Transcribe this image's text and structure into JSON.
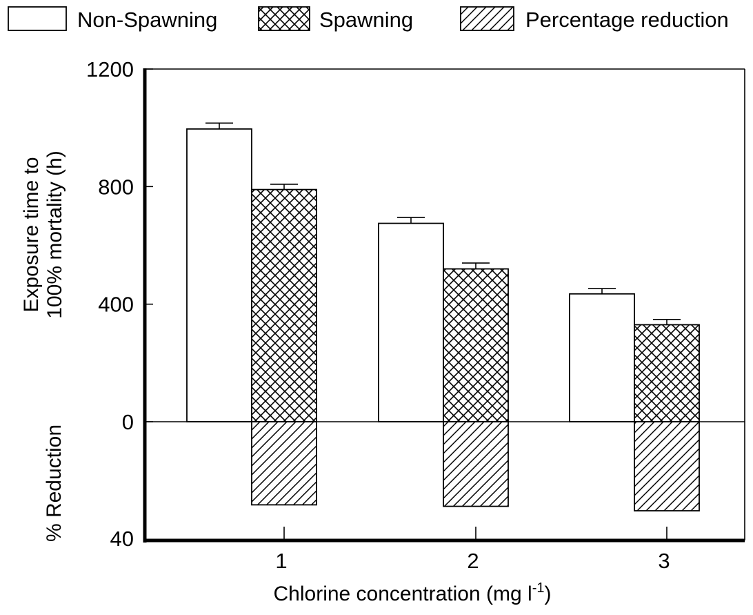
{
  "chart_data": {
    "type": "bar",
    "xlabel": "Chlorine concentration (mg l",
    "xlabel_superscript": "-1",
    "xlabel_close": ")",
    "ylabel_top_line1": "Exposure time to",
    "ylabel_top_line2": "100% mortality (h)",
    "ylabel_bottom": "% Reduction",
    "categories": [
      "1",
      "2",
      "3"
    ],
    "ylim_top": [
      0,
      1200
    ],
    "yticks_top": [
      "1200",
      "800",
      "400",
      "0"
    ],
    "ylim_bottom": [
      0,
      40
    ],
    "yticks_bottom": [
      "40"
    ],
    "series": [
      {
        "name": "Non-Spawning",
        "pattern": "open",
        "axis": "top",
        "values": [
          996,
          675,
          435
        ],
        "errors": [
          20,
          20,
          18
        ]
      },
      {
        "name": "Spawning",
        "pattern": "crosshatch",
        "axis": "top",
        "values": [
          790,
          520,
          330
        ],
        "errors": [
          18,
          20,
          18
        ]
      },
      {
        "name": "Percentage reduction",
        "pattern": "diagonal",
        "axis": "bottom",
        "values": [
          28,
          28.5,
          30
        ],
        "errors": []
      }
    ],
    "legend_position": "top",
    "grid": false
  },
  "colors": {
    "ink": "#000000",
    "background": "#ffffff"
  }
}
